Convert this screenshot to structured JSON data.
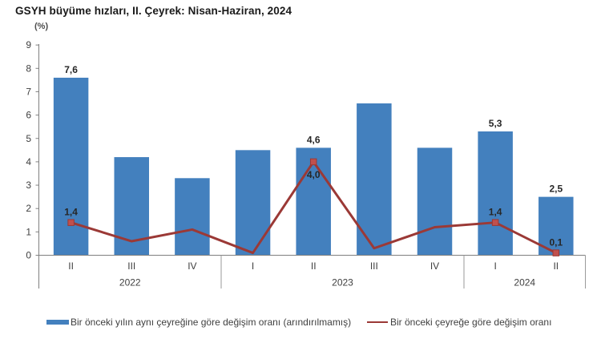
{
  "title": "GSYH büyüme hızları, II. Çeyrek: Nisan-Haziran, 2024",
  "unit_label": "(%)",
  "chart_data": {
    "type": "bar",
    "subtype": "bar-line-combo",
    "categories": [
      "II",
      "III",
      "IV",
      "I",
      "II",
      "III",
      "IV",
      "I",
      "II"
    ],
    "year_groups": [
      {
        "label": "2022",
        "count": 3
      },
      {
        "label": "2023",
        "count": 4
      },
      {
        "label": "2024",
        "count": 2
      }
    ],
    "series": [
      {
        "name": "Bir önceki yılın aynı çeyreğine göre değişim oranı (arındırılmamış)",
        "type": "bar",
        "color": "#4380be",
        "values": [
          7.6,
          4.2,
          3.3,
          4.5,
          4.6,
          6.5,
          4.6,
          5.3,
          2.5
        ],
        "labels": [
          "7,6",
          "",
          "",
          "",
          "4,6",
          "",
          "",
          "5,3",
          "2,5"
        ]
      },
      {
        "name": "Bir önceki çeyreğe göre değişim oranı",
        "type": "line",
        "color": "#9b3936",
        "marker_color": "#c0504d",
        "values": [
          1.4,
          0.6,
          1.1,
          0.1,
          4.0,
          0.3,
          1.2,
          1.4,
          0.1
        ],
        "labels": [
          "1,4",
          "",
          "",
          "",
          "4,0",
          "",
          "",
          "1,4",
          "0,1"
        ],
        "label_positions": [
          "above",
          "",
          "",
          "",
          "below",
          "",
          "",
          "above",
          "above"
        ],
        "marker_indices": [
          0,
          4,
          7,
          8
        ]
      }
    ],
    "title": "GSYH büyüme hızları, II. Çeyrek: Nisan-Haziran, 2024",
    "xlabel": "",
    "ylabel": "(%)",
    "ylim": [
      0,
      9
    ],
    "ytick_step": 1,
    "grid": false,
    "legend_position": "bottom"
  },
  "colors": {
    "bar": "#4380be",
    "line": "#9b3936",
    "marker": "#c0504d",
    "axis": "#808080",
    "separator": "#9a9a9a",
    "tick_text": "#3f3f3f",
    "data_label": "#262626"
  }
}
